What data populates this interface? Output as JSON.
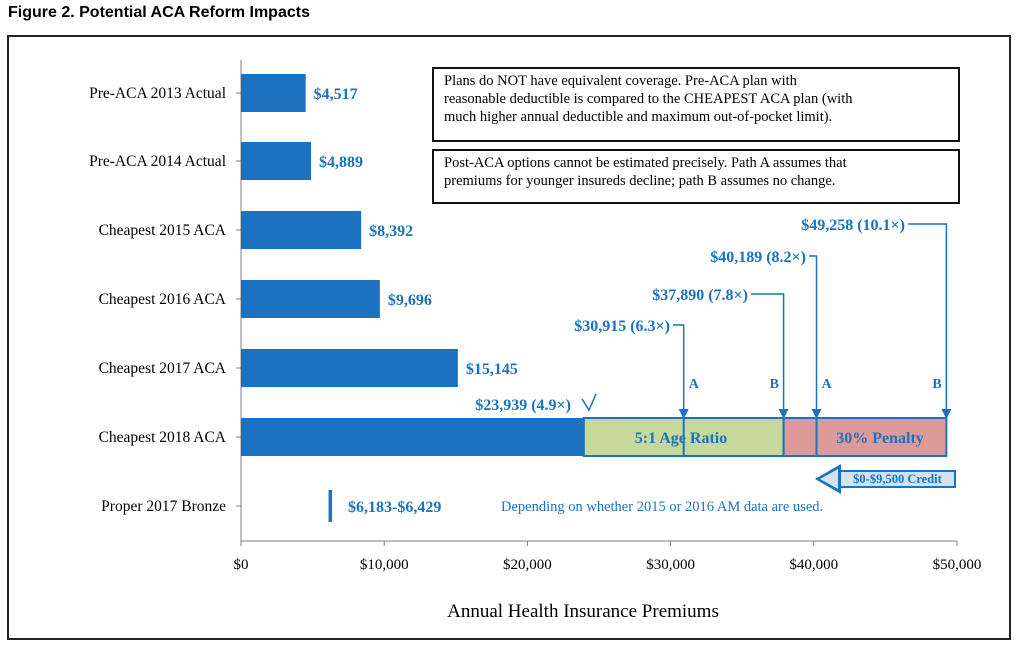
{
  "figure_title": "Figure 2.  Potential ACA Reform Impacts",
  "notes": {
    "box1": [
      "Plans do NOT have equivalent coverage.  Pre-ACA plan with",
      "reasonable deductible is compared to the CHEAPEST ACA plan (with",
      "much higher annual deductible and maximum out-of-pocket limit)."
    ],
    "box2": [
      "Post-ACA options cannot be estimated precisely.  Path A assumes that",
      "premiums for younger insureds decline; path B assumes no change."
    ]
  },
  "credit_label": "$0-$9,500 Credit",
  "colors": {
    "bar": "#1a72c0",
    "age_ratio": "#c6d89a",
    "penalty": "#dd9a99",
    "label": "#1a72c0"
  },
  "chart_data": {
    "type": "bar",
    "orientation": "horizontal",
    "xlabel": "Annual Health Insurance Premiums",
    "xlim": [
      0,
      50000
    ],
    "xticks": [
      0,
      10000,
      20000,
      30000,
      40000,
      50000
    ],
    "xtick_labels": [
      "$0",
      "$10,000",
      "$20,000",
      "$30,000",
      "$40,000",
      "$50,000"
    ],
    "grid": false,
    "categories": [
      "Pre-ACA 2013 Actual",
      "Pre-ACA 2014 Actual",
      "Cheapest 2015 ACA",
      "Cheapest 2016 ACA",
      "Cheapest 2017 ACA",
      "Cheapest 2018 ACA",
      "Proper 2017 Bronze"
    ],
    "values": [
      4517,
      4889,
      8392,
      9696,
      15145,
      23939,
      null
    ],
    "value_labels": [
      "$4,517",
      "$4,889",
      "$8,392",
      "$9,696",
      "$15,145",
      "$23,939 (4.9×)",
      "$6,183-$6,429"
    ],
    "range_marker": {
      "category": "Proper 2017 Bronze",
      "from": 6183,
      "to": 6429,
      "label": "$6,183-$6,429",
      "note": "Depending on whether 2015 or 2016 AM data are used."
    },
    "stacked_2018": [
      {
        "name": "5:1 Age Ratio",
        "from": 23939,
        "to": 37890
      },
      {
        "name": "30% Penalty",
        "from": 37890,
        "to": 49258
      }
    ],
    "path_markers": [
      {
        "value": 30915,
        "label": "$30,915 (6.3×)",
        "path": "A"
      },
      {
        "value": 37890,
        "label": "$37,890 (7.8×)",
        "path": "B"
      },
      {
        "value": 40189,
        "label": "$40,189 (8.2×)",
        "path": "A"
      },
      {
        "value": 49258,
        "label": "$49,258 (10.1×)",
        "path": "B"
      }
    ],
    "credit_range": [
      0,
      9500
    ]
  }
}
